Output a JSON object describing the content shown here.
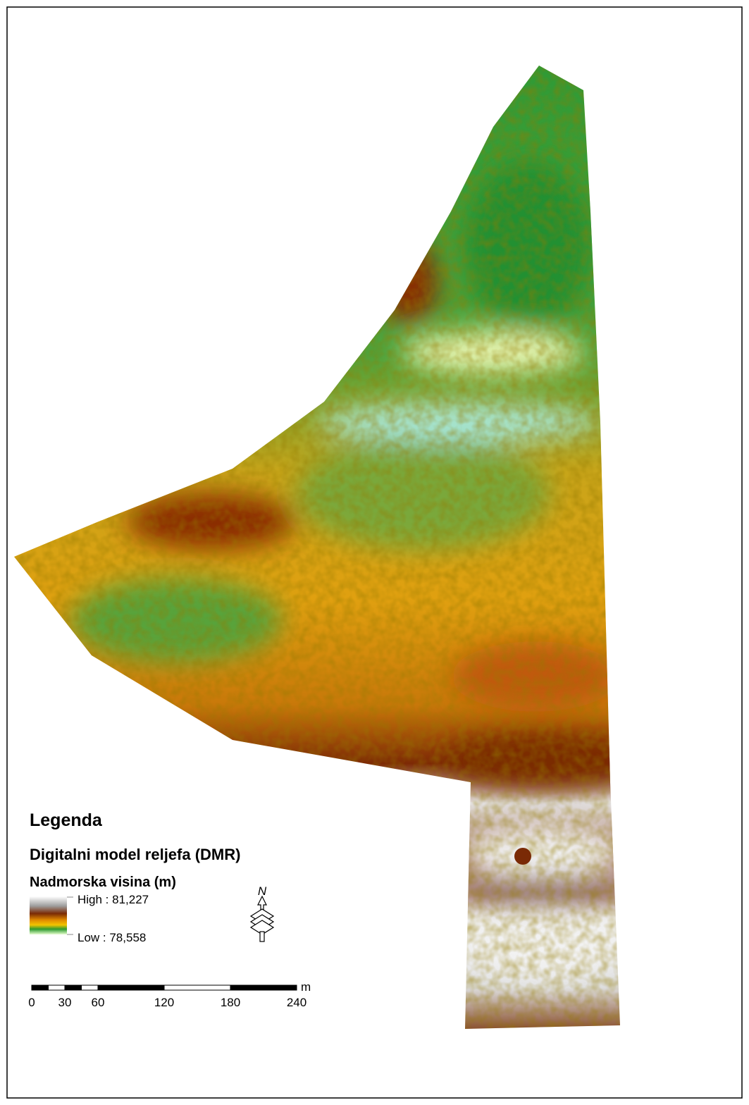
{
  "legend": {
    "title": "Legenda",
    "layer": "Digitalni model reljefa (DMR)",
    "field": "Nadmorska visina (m)",
    "high": "High : 81,227",
    "low": "Low : 78,558"
  },
  "north_arrow": "N",
  "scale_bar": {
    "ticks": [
      0,
      30,
      60,
      120,
      180,
      240
    ],
    "unit": "m"
  }
}
